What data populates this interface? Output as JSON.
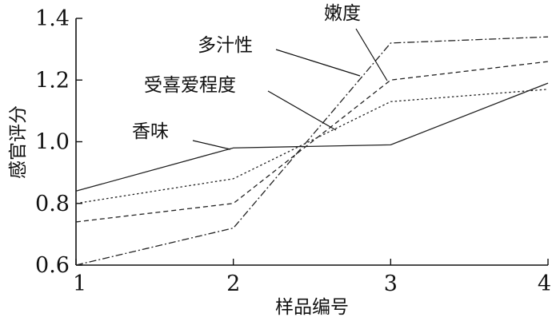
{
  "chart_data": {
    "type": "line",
    "xlabel": "样品编号",
    "ylabel": "感官评分",
    "x": [
      1,
      2,
      3,
      4
    ],
    "xlim": [
      1,
      4
    ],
    "ylim": [
      0.6,
      1.4
    ],
    "x_ticks": [
      "1",
      "2",
      "3",
      "4"
    ],
    "y_ticks": [
      "0.6",
      "0.8",
      "1.0",
      "1.2",
      "1.4"
    ],
    "grid": false,
    "legend": "none",
    "series": [
      {
        "name": "香味",
        "values": [
          0.84,
          0.98,
          0.99,
          1.19
        ],
        "dash": "solid"
      },
      {
        "name": "受喜爱程度",
        "values": [
          0.8,
          0.88,
          1.13,
          1.17
        ],
        "dash": "dotted"
      },
      {
        "name": "多汁性",
        "values": [
          0.74,
          0.8,
          1.2,
          1.26
        ],
        "dash": "dashed"
      },
      {
        "name": "嫩度",
        "values": [
          0.6,
          0.72,
          1.32,
          1.34
        ],
        "dash": "dashdot"
      }
    ]
  }
}
